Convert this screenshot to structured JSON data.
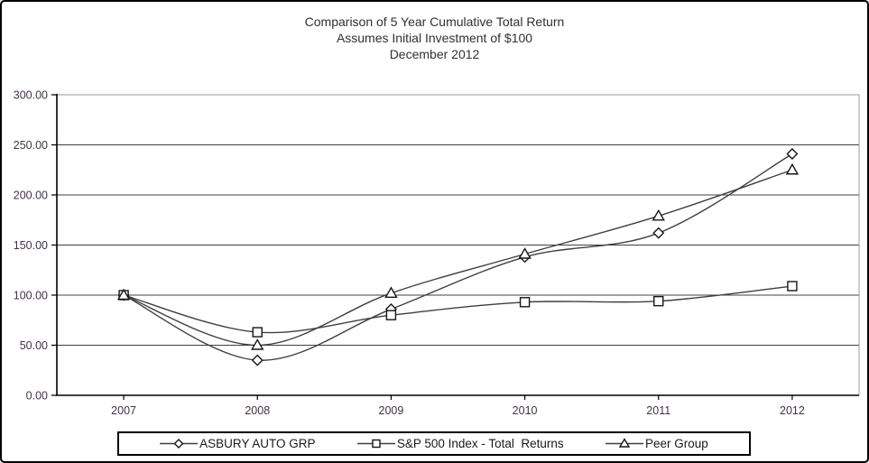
{
  "title": {
    "line1": "Comparison of 5 Year Cumulative Total Return",
    "line2": "Assumes Initial Investment of $100",
    "line3": "December 2012"
  },
  "chart_data": {
    "type": "line",
    "categories": [
      "2007",
      "2008",
      "2009",
      "2010",
      "2011",
      "2012"
    ],
    "series": [
      {
        "name": "ASBURY AUTO GRP",
        "marker": "diamond",
        "values": [
          100,
          35,
          86,
          138,
          162,
          241
        ]
      },
      {
        "name": "S&P 500 Index - Total  Returns",
        "marker": "square",
        "values": [
          100,
          63,
          80,
          93,
          94,
          109
        ]
      },
      {
        "name": "Peer Group",
        "marker": "triangle",
        "values": [
          100,
          50,
          102,
          141,
          179,
          225
        ]
      }
    ],
    "xlabel": "",
    "ylabel": "",
    "ylim": [
      0,
      300
    ],
    "yticks": [
      0,
      50,
      100,
      150,
      200,
      250,
      300
    ],
    "ytick_labels": [
      "0.00",
      "50.00",
      "100.00",
      "150.00",
      "200.00",
      "250.00",
      "300.00"
    ],
    "grid": true,
    "smooth": true,
    "legend_position": "bottom"
  },
  "style": {
    "line_color": "#3f3f3f",
    "marker_fill": "#ffffff",
    "marker_stroke": "#161616",
    "grid_color": "#404040",
    "frame_color": "#9a9a9a",
    "axis_color": "#000000",
    "tick_label_color": "#43324a",
    "title_color": "#332e36"
  }
}
